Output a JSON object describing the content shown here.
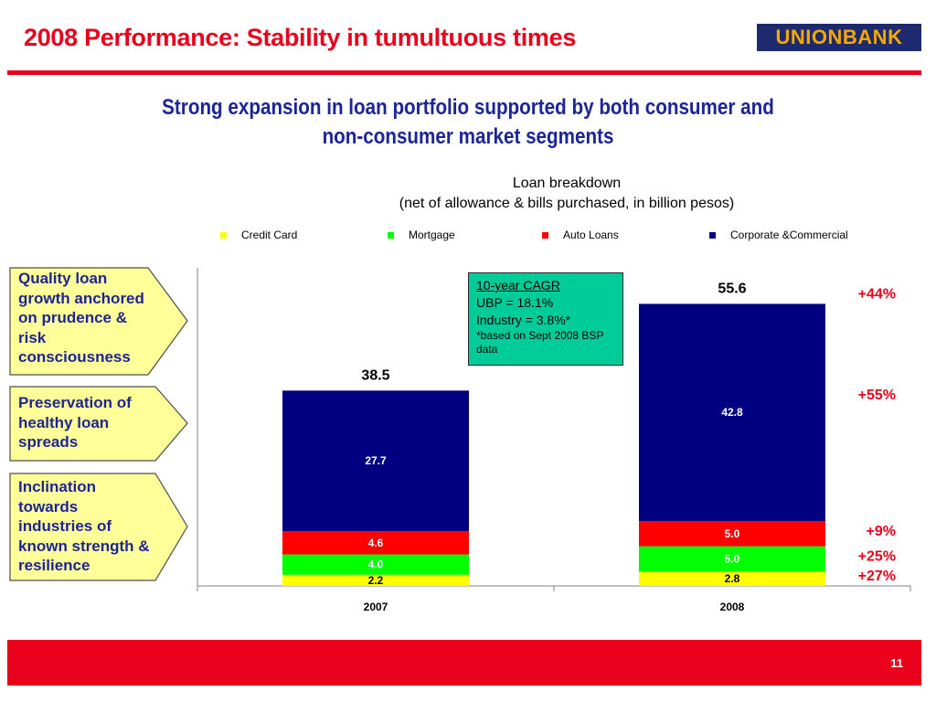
{
  "slide": {
    "title": "2008 Performance: Stability in tumultuous times",
    "subtitle_line1": "Strong expansion in loan portfolio supported by both consumer and",
    "subtitle_line2": "non-consumer market segments",
    "page_number": "11"
  },
  "logo": {
    "text": "UNIONBANK",
    "color_bg": "#1d2a6e",
    "color_text": "#f5a800"
  },
  "callouts": [
    {
      "text": "Quality loan growth anchored on prudence & risk consciousness"
    },
    {
      "text": "Preservation of healthy loan spreads"
    },
    {
      "text": "Inclination towards industries of known strength & resilience"
    }
  ],
  "cagr_box": {
    "title": "10-year CAGR",
    "line1": "UBP = 18.1%",
    "line2": "Industry = 3.8%*",
    "note": "*based on Sept 2008 BSP data"
  },
  "chart_data": {
    "type": "bar",
    "stacked": true,
    "title": "Loan breakdown",
    "subtitle": "(net of allowance & bills purchased, in billion pesos)",
    "categories": [
      "2007",
      "2008"
    ],
    "series": [
      {
        "name": "Credit Card",
        "values": [
          2.2,
          2.8
        ],
        "labels": [
          "2.2",
          "2.8"
        ],
        "color": "#ffff00",
        "label_color": "#000000"
      },
      {
        "name": "Mortgage",
        "values": [
          4.0,
          5.0
        ],
        "labels": [
          "4.0",
          "5.0"
        ],
        "color": "#00ff00",
        "label_color": "#ffffff"
      },
      {
        "name": "Auto Loans",
        "values": [
          4.6,
          5.0
        ],
        "labels": [
          "4.6",
          "5.0"
        ],
        "color": "#ff0000",
        "label_color": "#ffffff"
      },
      {
        "name": "Corporate &Commercial",
        "values": [
          27.7,
          42.8
        ],
        "labels": [
          "27.7",
          "42.8"
        ],
        "color": "#000080",
        "label_color": "#ffffff"
      }
    ],
    "totals": [
      "38.5",
      "55.6"
    ],
    "growth": [
      {
        "series": "Corporate &Commercial total",
        "text": "+44%"
      },
      {
        "series": "Corporate &Commercial",
        "text": "+55%"
      },
      {
        "series": "Auto Loans",
        "text": "+9%"
      },
      {
        "series": "Mortgage",
        "text": "+25%"
      },
      {
        "series": "Credit Card",
        "text": "+27%"
      }
    ],
    "legend_position": "top",
    "grid": false,
    "ylim": [
      0,
      60
    ]
  },
  "colors": {
    "accent_red": "#e8001c",
    "navy_text": "#1d2596",
    "callout_fill": "#ffff99",
    "cagr_fill": "#00cc99"
  }
}
